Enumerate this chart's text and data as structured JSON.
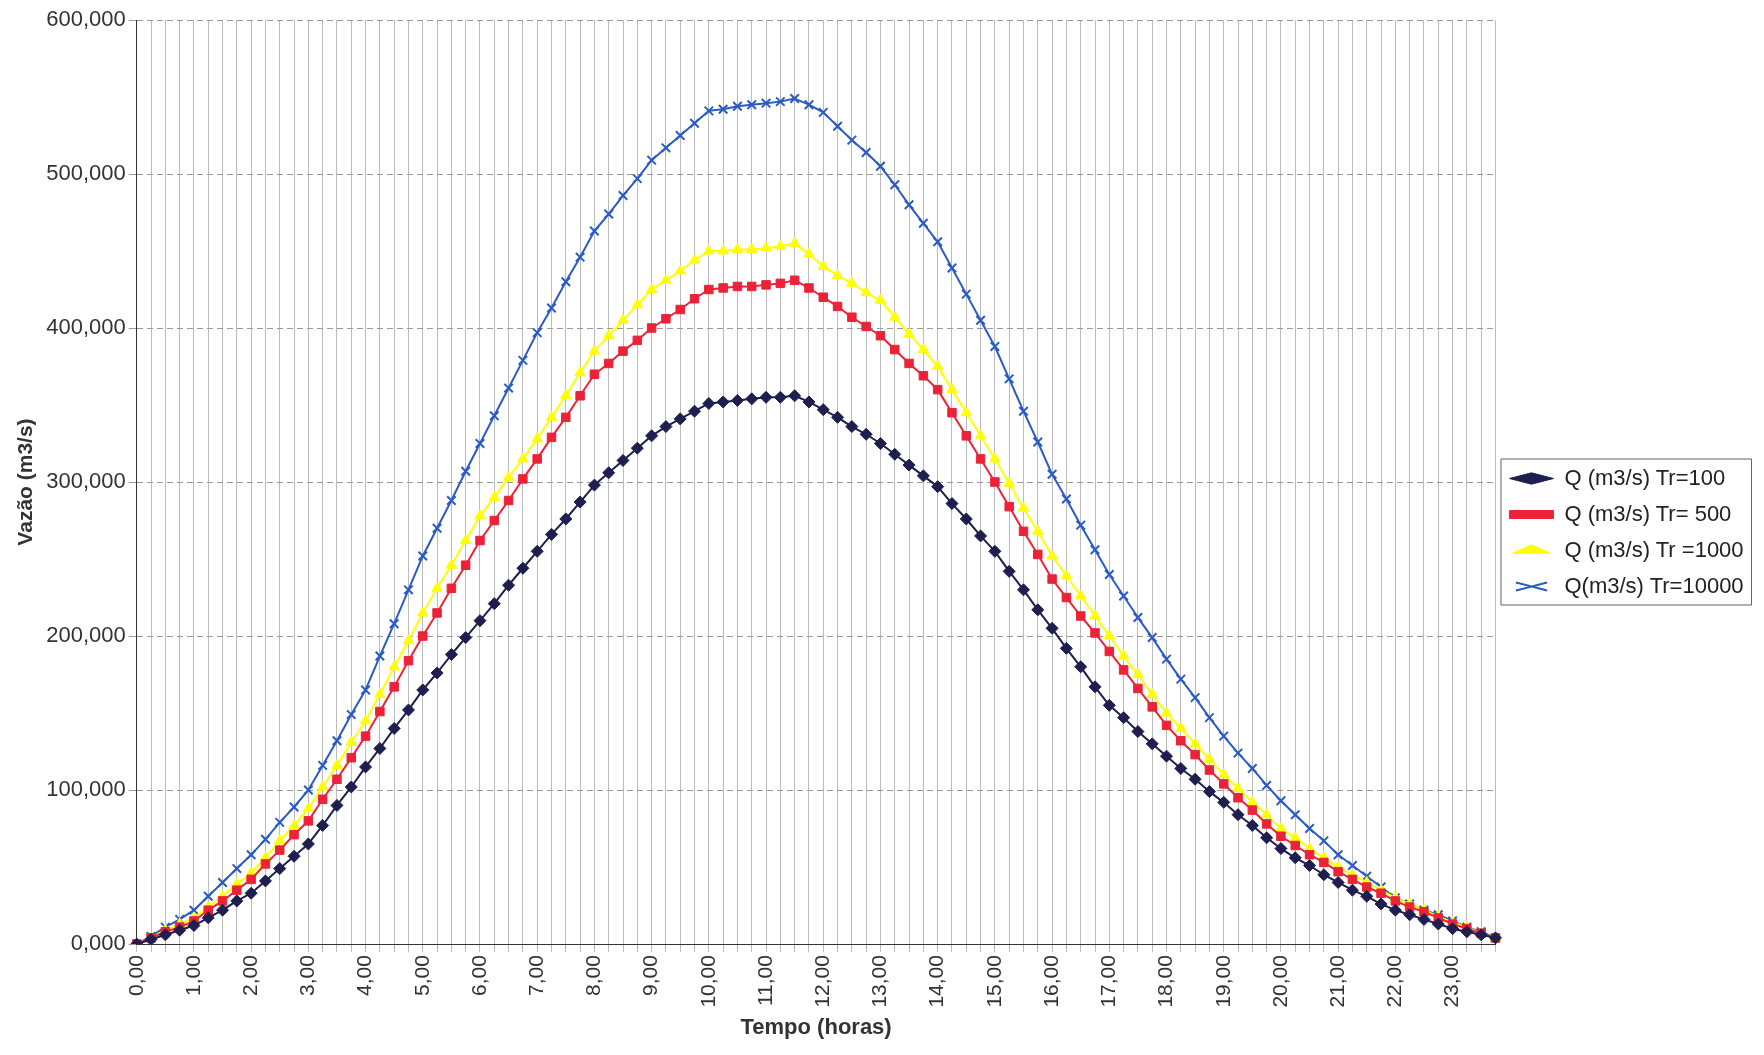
{
  "chart_data": {
    "type": "line",
    "xlabel": "Tempo (horas)",
    "ylabel": "Vazão (m3/s)",
    "categories": [
      "0,00",
      null,
      null,
      null,
      "1,00",
      null,
      null,
      null,
      "2,00",
      null,
      null,
      null,
      "3,00",
      null,
      null,
      null,
      "4,00",
      null,
      null,
      null,
      "5,00",
      null,
      null,
      null,
      "6,00",
      null,
      null,
      null,
      "7,00",
      null,
      null,
      null,
      "8,00",
      null,
      null,
      null,
      "9,00",
      null,
      null,
      null,
      "10,00",
      null,
      null,
      null,
      "11,00",
      null,
      null,
      null,
      "12,00",
      null,
      null,
      null,
      "13,00",
      null,
      null,
      null,
      "14,00",
      null,
      null,
      null,
      "15,00",
      null,
      null,
      null,
      "16,00",
      null,
      null,
      null,
      "17,00",
      null,
      null,
      null,
      "18,00",
      null,
      null,
      null,
      "19,00",
      null,
      null,
      null,
      "20,00",
      null,
      null,
      null,
      "21,00",
      null,
      null,
      null,
      "22,00",
      null,
      null,
      null,
      "23,00",
      null,
      null,
      null
    ],
    "series": [
      {
        "name": "Q (m3/s) Tr=100",
        "color": "#1f1f4f",
        "marker": "diamond",
        "values": [
          0,
          3,
          6,
          9,
          12,
          17,
          22,
          28,
          33,
          41,
          49,
          57,
          65,
          77,
          90,
          102,
          115,
          127,
          140,
          152,
          165,
          176,
          188,
          199,
          210,
          221,
          233,
          244,
          255,
          266,
          276,
          287,
          298,
          306,
          314,
          322,
          330,
          336,
          341,
          346,
          351,
          352,
          353,
          354,
          355,
          355,
          356,
          352,
          347,
          342,
          336,
          331,
          325,
          318,
          311,
          304,
          297,
          286,
          276,
          265,
          255,
          242,
          230,
          217,
          205,
          192,
          180,
          167,
          155,
          147,
          138,
          130,
          122,
          114,
          107,
          99,
          92,
          84,
          77,
          69,
          62,
          56,
          51,
          45,
          40,
          35,
          31,
          26,
          22,
          19,
          16,
          13,
          10,
          8,
          6,
          4
        ]
      },
      {
        "name": "Q (m3/s) Tr= 500",
        "color": "#ec2238",
        "marker": "square",
        "values": [
          0,
          4,
          8,
          11,
          15,
          22,
          28,
          35,
          42,
          52,
          61,
          71,
          80,
          94,
          107,
          121,
          135,
          151,
          167,
          184,
          200,
          215,
          231,
          246,
          262,
          275,
          288,
          302,
          315,
          329,
          342,
          356,
          370,
          377,
          385,
          392,
          400,
          406,
          412,
          419,
          425,
          426,
          427,
          427,
          428,
          429,
          431,
          426,
          420,
          414,
          407,
          401,
          395,
          386,
          377,
          369,
          360,
          345,
          330,
          315,
          300,
          284,
          268,
          253,
          237,
          225,
          213,
          202,
          190,
          178,
          166,
          154,
          142,
          132,
          123,
          113,
          104,
          95,
          87,
          78,
          70,
          64,
          58,
          53,
          47,
          42,
          37,
          33,
          28,
          24,
          21,
          17,
          13,
          10,
          7,
          4
        ]
      },
      {
        "name": "Q (m3/s) Tr =1000",
        "color": "#ffff00",
        "marker": "triangle",
        "values": [
          0,
          4,
          9,
          13,
          17,
          24,
          31,
          39,
          46,
          56,
          67,
          77,
          88,
          102,
          116,
          131,
          145,
          162,
          180,
          197,
          215,
          231,
          246,
          262,
          278,
          290,
          303,
          315,
          328,
          342,
          356,
          371,
          385,
          395,
          405,
          415,
          425,
          431,
          437,
          444,
          450,
          450,
          451,
          451,
          452,
          453,
          455,
          448,
          440,
          434,
          429,
          423,
          418,
          407,
          396,
          386,
          375,
          360,
          345,
          330,
          315,
          299,
          283,
          268,
          252,
          239,
          226,
          213,
          200,
          187,
          175,
          162,
          150,
          140,
          130,
          120,
          110,
          101,
          92,
          84,
          75,
          69,
          62,
          56,
          50,
          45,
          40,
          35,
          30,
          26,
          22,
          18,
          14,
          11,
          7,
          4
        ]
      },
      {
        "name": "Q(m3/s) Tr=10000",
        "color": "#2a5bc4",
        "marker": "cross",
        "values": [
          0,
          5,
          11,
          16,
          22,
          31,
          40,
          49,
          58,
          68,
          79,
          89,
          100,
          116,
          132,
          149,
          165,
          187,
          208,
          230,
          252,
          270,
          288,
          307,
          325,
          343,
          361,
          379,
          397,
          413,
          430,
          446,
          463,
          474,
          486,
          497,
          509,
          517,
          525,
          533,
          541,
          542,
          544,
          545,
          546,
          547,
          549,
          545,
          540,
          531,
          522,
          514,
          505,
          493,
          480,
          468,
          456,
          439,
          422,
          405,
          388,
          367,
          346,
          326,
          305,
          289,
          272,
          256,
          240,
          226,
          212,
          199,
          185,
          172,
          160,
          147,
          135,
          124,
          114,
          103,
          93,
          84,
          75,
          67,
          58,
          51,
          44,
          37,
          30,
          26,
          22,
          19,
          15,
          11,
          8,
          4
        ]
      }
    ],
    "ylim": [
      0,
      600
    ],
    "yticks": [
      {
        "value": 0,
        "label": "0,000"
      },
      {
        "value": 100,
        "label": "100,000"
      },
      {
        "value": 200,
        "label": "200,000"
      },
      {
        "value": 300,
        "label": "300,000"
      },
      {
        "value": 400,
        "label": "400,000"
      },
      {
        "value": 500,
        "label": "500,000"
      },
      {
        "value": 600,
        "label": "600,000"
      }
    ],
    "grid": true,
    "line_style": "solid",
    "legend": "right"
  }
}
